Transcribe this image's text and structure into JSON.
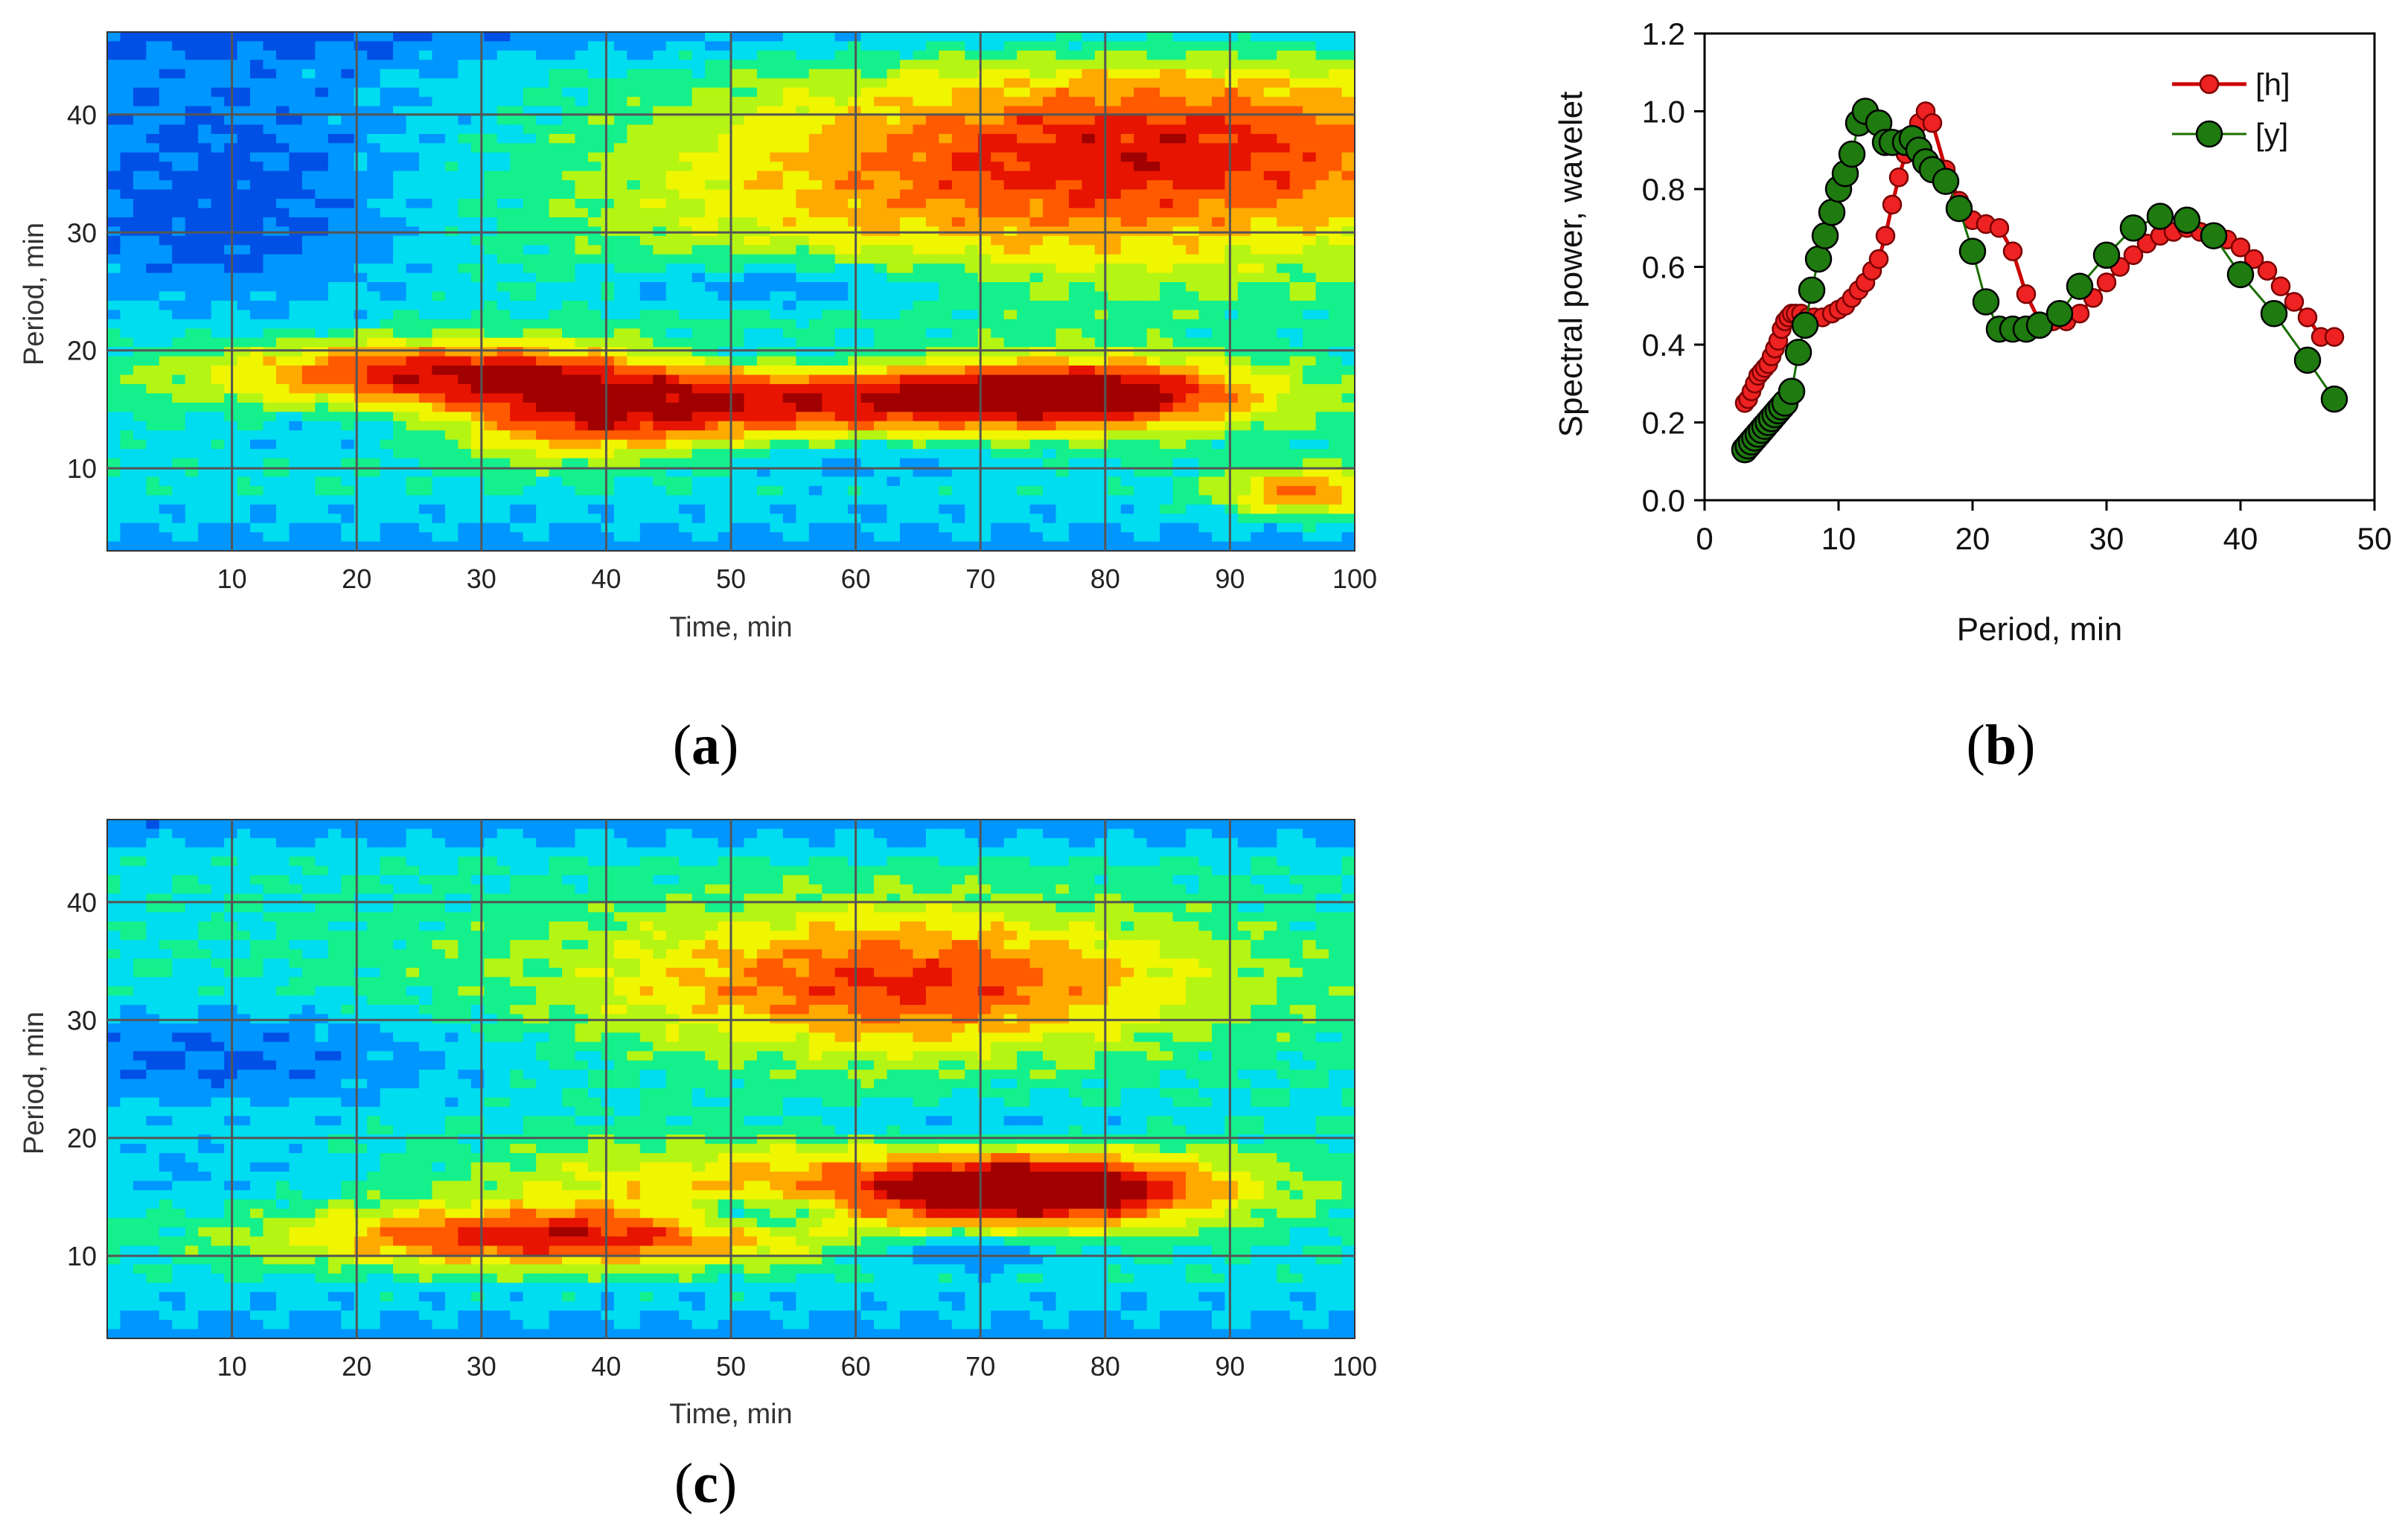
{
  "chart_data": [
    {
      "id": "a",
      "type": "heatmap",
      "panel_label": {
        "open": "(",
        "letter": "a",
        "close": ")"
      },
      "xlabel": "Time, min",
      "ylabel": "Period, min",
      "xlim": [
        0,
        100
      ],
      "ylim": [
        3,
        47
      ],
      "xticks": [
        10,
        20,
        30,
        40,
        50,
        60,
        70,
        80,
        90,
        100
      ],
      "yticks": [
        10,
        20,
        30,
        40
      ],
      "colormap": [
        "#0a14b4",
        "#0050e6",
        "#0096ff",
        "#00dcf0",
        "#14f08c",
        "#b4f514",
        "#f0f500",
        "#ffaa00",
        "#ff5a00",
        "#e61400",
        "#a00000"
      ],
      "features": [
        {
          "t": 78,
          "p": 16.5,
          "st": 10,
          "sp": 2.0,
          "a": 0.55
        },
        {
          "t": 52,
          "p": 15.5,
          "st": 24,
          "sp": 2.4,
          "a": 0.55
        },
        {
          "t": 28,
          "p": 18.5,
          "st": 14,
          "sp": 1.8,
          "a": 0.5
        },
        {
          "t": 38,
          "p": 13,
          "st": 8,
          "sp": 2.2,
          "a": 0.25
        },
        {
          "t": 85,
          "p": 38,
          "st": 22,
          "sp": 5.5,
          "a": 0.45
        },
        {
          "t": 70,
          "p": 32,
          "st": 28,
          "sp": 6,
          "a": 0.25
        },
        {
          "t": 96,
          "p": 8,
          "st": 5,
          "sp": 1.5,
          "a": 0.45
        },
        {
          "t": 55,
          "p": 25.5,
          "st": 10,
          "sp": 1.6,
          "a": -0.25
        },
        {
          "t": 52,
          "p": 19.5,
          "st": 10,
          "sp": 1.2,
          "a": -0.2
        },
        {
          "t": 20,
          "p": 13.5,
          "st": 8,
          "sp": 1.5,
          "a": -0.2
        },
        {
          "t": 60,
          "p": 11,
          "st": 10,
          "sp": 1.5,
          "a": -0.15
        },
        {
          "t": 10,
          "p": 30,
          "st": 12,
          "sp": 5,
          "a": -0.2
        },
        {
          "t": 10,
          "p": 40,
          "st": 14,
          "sp": 6,
          "a": -0.15
        }
      ]
    },
    {
      "id": "b",
      "type": "line",
      "panel_label": {
        "open": "(",
        "letter": "b",
        "close": ")"
      },
      "xlabel": "Period, min",
      "ylabel": "Spectral power, wavelet",
      "xlim": [
        0,
        50
      ],
      "ylim": [
        0,
        1.2
      ],
      "xticks": [
        0,
        10,
        20,
        30,
        40,
        50
      ],
      "yticks": [
        0.0,
        0.2,
        0.4,
        0.6,
        0.8,
        1.0,
        1.2
      ],
      "xticklabels": [
        "0",
        "10",
        "20",
        "30",
        "40",
        "50"
      ],
      "yticklabels": [
        "0.0",
        "0.2",
        "0.4",
        "0.6",
        "0.8",
        "1.0",
        "1.2"
      ],
      "legend_position": "top-right",
      "series": [
        {
          "name": "[h]",
          "color": "#cc0000",
          "x": [
            3.0,
            3.25,
            3.5,
            3.75,
            4.0,
            4.25,
            4.5,
            4.75,
            5.0,
            5.25,
            5.5,
            5.75,
            6.0,
            6.25,
            6.5,
            6.8,
            7.2,
            7.7,
            8.2,
            8.8,
            9.5,
            10.0,
            10.5,
            11.0,
            11.5,
            12.0,
            12.5,
            13.0,
            13.5,
            14.0,
            14.5,
            15.0,
            15.5,
            16.0,
            16.5,
            17.0,
            18.0,
            19.0,
            20.0,
            21.0,
            22.0,
            23.0,
            24.0,
            25.0,
            26.0,
            27.0,
            28.0,
            29.0,
            30.0,
            31.0,
            32.0,
            33.0,
            34.0,
            35.0,
            36.0,
            37.0,
            38.0,
            39.0,
            40.0,
            41.0,
            42.0,
            43.0,
            44.0,
            45.0,
            46.0,
            47.0
          ],
          "y": [
            0.25,
            0.26,
            0.28,
            0.3,
            0.32,
            0.33,
            0.34,
            0.35,
            0.37,
            0.39,
            0.41,
            0.44,
            0.46,
            0.47,
            0.48,
            0.48,
            0.48,
            0.47,
            0.47,
            0.47,
            0.48,
            0.49,
            0.5,
            0.52,
            0.54,
            0.56,
            0.59,
            0.62,
            0.68,
            0.76,
            0.83,
            0.89,
            0.94,
            0.97,
            1.0,
            0.97,
            0.85,
            0.77,
            0.72,
            0.71,
            0.7,
            0.64,
            0.53,
            0.46,
            0.46,
            0.46,
            0.48,
            0.52,
            0.56,
            0.6,
            0.63,
            0.66,
            0.68,
            0.69,
            0.7,
            0.69,
            0.68,
            0.67,
            0.65,
            0.62,
            0.59,
            0.55,
            0.51,
            0.47,
            0.42,
            0.42
          ]
        },
        {
          "name": "[y]",
          "color": "#1a6e00",
          "x": [
            3.0,
            3.25,
            3.5,
            3.75,
            4.0,
            4.25,
            4.5,
            4.75,
            5.0,
            5.25,
            5.5,
            5.75,
            6.0,
            6.5,
            7.0,
            7.5,
            8.0,
            8.5,
            9.0,
            9.5,
            10.0,
            10.5,
            11.0,
            11.5,
            12.0,
            13.0,
            13.5,
            14.0,
            15.0,
            15.5,
            16.0,
            16.5,
            17.0,
            18.0,
            19.0,
            20.0,
            21.0,
            22.0,
            23.0,
            24.0,
            25.0,
            26.5,
            28.0,
            30.0,
            32.0,
            34.0,
            36.0,
            38.0,
            40.0,
            42.5,
            45.0,
            47.0
          ],
          "y": [
            0.13,
            0.14,
            0.15,
            0.16,
            0.17,
            0.18,
            0.19,
            0.2,
            0.21,
            0.22,
            0.23,
            0.24,
            0.25,
            0.28,
            0.38,
            0.45,
            0.54,
            0.62,
            0.68,
            0.74,
            0.8,
            0.84,
            0.89,
            0.97,
            1.0,
            0.97,
            0.92,
            0.92,
            0.92,
            0.93,
            0.9,
            0.87,
            0.85,
            0.82,
            0.75,
            0.64,
            0.51,
            0.44,
            0.44,
            0.44,
            0.45,
            0.48,
            0.55,
            0.63,
            0.7,
            0.73,
            0.72,
            0.68,
            0.58,
            0.48,
            0.36,
            0.26
          ]
        }
      ]
    },
    {
      "id": "c",
      "type": "heatmap",
      "panel_label": {
        "open": "(",
        "letter": "c",
        "close": ")"
      },
      "xlabel": "Time, min",
      "ylabel": "Period, min",
      "xlim": [
        0,
        100
      ],
      "ylim": [
        3,
        47
      ],
      "xticks": [
        10,
        20,
        30,
        40,
        50,
        60,
        70,
        80,
        90,
        100
      ],
      "yticks": [
        10,
        20,
        30,
        40
      ],
      "colormap": [
        "#0a14b4",
        "#0050e6",
        "#0096ff",
        "#00dcf0",
        "#14f08c",
        "#b4f514",
        "#f0f500",
        "#ffaa00",
        "#ff5a00",
        "#e61400",
        "#a00000"
      ],
      "features": [
        {
          "t": 75,
          "p": 15.5,
          "st": 10,
          "sp": 2.2,
          "a": 0.6
        },
        {
          "t": 58,
          "p": 16,
          "st": 22,
          "sp": 2.8,
          "a": 0.35
        },
        {
          "t": 35,
          "p": 11.5,
          "st": 15,
          "sp": 1.8,
          "a": 0.55
        },
        {
          "t": 64,
          "p": 33,
          "st": 15,
          "sp": 4,
          "a": 0.4
        },
        {
          "t": 60,
          "p": 34,
          "st": 30,
          "sp": 6,
          "a": 0.15
        },
        {
          "t": 52,
          "p": 13.5,
          "st": 5,
          "sp": 1.2,
          "a": -0.35
        },
        {
          "t": 68,
          "p": 10.5,
          "st": 6,
          "sp": 1.2,
          "a": -0.25
        },
        {
          "t": 70,
          "p": 21,
          "st": 10,
          "sp": 1.5,
          "a": -0.15
        },
        {
          "t": 10,
          "p": 27,
          "st": 15,
          "sp": 3,
          "a": -0.2
        },
        {
          "t": 10,
          "p": 17,
          "st": 10,
          "sp": 2,
          "a": -0.1
        }
      ]
    }
  ]
}
